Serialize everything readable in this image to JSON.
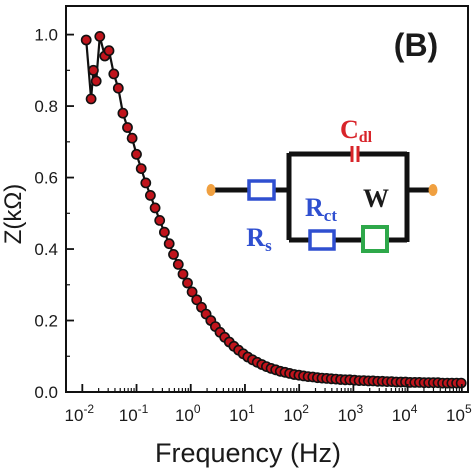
{
  "chart_data": {
    "type": "scatter",
    "panel_label": "(B)",
    "xlabel": "Frequency (Hz)",
    "ylabel": "Z(kΩ)",
    "x_scale": "log",
    "xlim": [
      0.005,
      130000
    ],
    "ylim": [
      0,
      1.08
    ],
    "x_ticks": [
      {
        "value": 0.01,
        "base": "10",
        "exp": "-2"
      },
      {
        "value": 0.1,
        "base": "10",
        "exp": "-1"
      },
      {
        "value": 1,
        "base": "10",
        "exp": "0"
      },
      {
        "value": 10,
        "base": "10",
        "exp": "1"
      },
      {
        "value": 100,
        "base": "10",
        "exp": "2"
      },
      {
        "value": 1000,
        "base": "10",
        "exp": "3"
      },
      {
        "value": 10000,
        "base": "10",
        "exp": "4"
      },
      {
        "value": 100000,
        "base": "10",
        "exp": "5"
      }
    ],
    "y_ticks": [
      {
        "value": 0.0,
        "label": "0.0"
      },
      {
        "value": 0.2,
        "label": "0.2"
      },
      {
        "value": 0.4,
        "label": "0.4"
      },
      {
        "value": 0.6,
        "label": "0.6"
      },
      {
        "value": 0.8,
        "label": "0.8"
      },
      {
        "value": 1.0,
        "label": "1.0"
      }
    ],
    "grid": false,
    "legend": false,
    "marker_color": "#c0141c",
    "marker_edge_color": "#111111",
    "line_color": "#111111",
    "series": [
      {
        "points": [
          [
            0.0118,
            0.985
          ],
          [
            0.0145,
            0.82
          ],
          [
            0.016,
            0.9
          ],
          [
            0.018,
            0.87
          ],
          [
            0.021,
            0.995
          ],
          [
            0.026,
            0.94
          ],
          [
            0.031,
            0.955
          ],
          [
            0.038,
            0.89
          ],
          [
            0.046,
            0.85
          ],
          [
            0.056,
            0.78
          ],
          [
            0.068,
            0.74
          ],
          [
            0.083,
            0.71
          ],
          [
            0.1,
            0.665
          ],
          [
            0.122,
            0.625
          ],
          [
            0.148,
            0.585
          ],
          [
            0.18,
            0.55
          ],
          [
            0.22,
            0.515
          ],
          [
            0.268,
            0.48
          ],
          [
            0.326,
            0.447
          ],
          [
            0.4,
            0.415
          ],
          [
            0.48,
            0.385
          ],
          [
            0.59,
            0.357
          ],
          [
            0.72,
            0.33
          ],
          [
            0.87,
            0.305
          ],
          [
            1.06,
            0.28
          ],
          [
            1.29,
            0.258
          ],
          [
            1.58,
            0.237
          ],
          [
            1.92,
            0.218
          ],
          [
            2.34,
            0.2
          ],
          [
            2.85,
            0.183
          ],
          [
            3.47,
            0.167
          ],
          [
            4.22,
            0.153
          ],
          [
            5.14,
            0.14
          ],
          [
            6.26,
            0.128
          ],
          [
            7.62,
            0.117
          ],
          [
            9.28,
            0.107
          ],
          [
            11.3,
            0.098
          ],
          [
            13.8,
            0.09
          ],
          [
            16.8,
            0.083
          ],
          [
            20.4,
            0.077
          ],
          [
            24.9,
            0.071
          ],
          [
            30.3,
            0.066
          ],
          [
            36.9,
            0.062
          ],
          [
            44.9,
            0.058
          ],
          [
            54.7,
            0.055
          ],
          [
            66.6,
            0.052
          ],
          [
            81.1,
            0.049
          ],
          [
            98.8,
            0.047
          ],
          [
            120,
            0.045
          ],
          [
            146,
            0.043
          ],
          [
            178,
            0.042
          ],
          [
            217,
            0.04
          ],
          [
            264,
            0.039
          ],
          [
            321,
            0.038
          ],
          [
            391,
            0.037
          ],
          [
            476,
            0.036
          ],
          [
            580,
            0.035
          ],
          [
            706,
            0.034
          ],
          [
            860,
            0.034
          ],
          [
            1047,
            0.033
          ],
          [
            1275,
            0.032
          ],
          [
            1553,
            0.032
          ],
          [
            1891,
            0.031
          ],
          [
            2303,
            0.031
          ],
          [
            2804,
            0.03
          ],
          [
            3415,
            0.03
          ],
          [
            4159,
            0.029
          ],
          [
            5065,
            0.029
          ],
          [
            6168,
            0.028
          ],
          [
            7512,
            0.028
          ],
          [
            9148,
            0.028
          ],
          [
            11140,
            0.027
          ],
          [
            13567,
            0.027
          ],
          [
            16522,
            0.027
          ],
          [
            20121,
            0.026
          ],
          [
            24504,
            0.026
          ],
          [
            29842,
            0.026
          ],
          [
            36343,
            0.026
          ],
          [
            44260,
            0.025
          ],
          [
            53900,
            0.025
          ],
          [
            65640,
            0.025
          ],
          [
            79940,
            0.025
          ],
          [
            97350,
            0.025
          ]
        ]
      }
    ]
  },
  "circuit": {
    "c_main": "C",
    "c_sub": "dl",
    "rs_main": "R",
    "rs_sub": "s",
    "rct_main": "R",
    "rct_sub": "ct",
    "w_label": "W",
    "wire_color": "#111111",
    "terminal_color": "#f0a040",
    "resistor_color": "#2f4fd0",
    "capacitor_color": "#d8242a",
    "warburg_color": "#2ea84a"
  }
}
